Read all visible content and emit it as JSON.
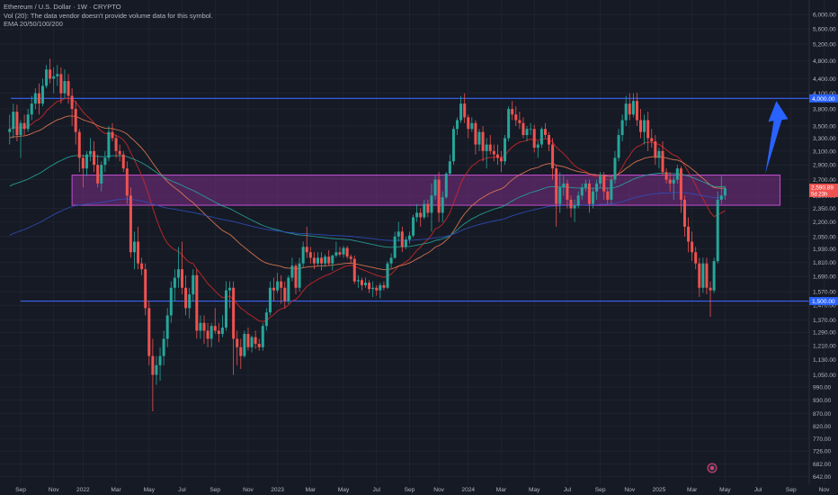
{
  "legend": {
    "title": "Ethereum / U.S. Dollar · 1W · CRYPTO",
    "volume_note": "Vol (20): The data vendor doesn't provide volume data for this symbol.",
    "ema_note": "EMA 20/50/100/200"
  },
  "colors": {
    "background": "#161a25",
    "grid": "#242836",
    "up": "#26a69a",
    "down": "#ef5350",
    "hline": "#3a63f5",
    "zone_fill": "#7b2f86",
    "zone_border": "#c050d0",
    "arrow": "#2962ff",
    "ema20": "#c62828",
    "ema50": "#e57b52",
    "ema100": "#26a69a",
    "ema200": "#2f4fbf"
  },
  "chart_data": {
    "type": "candlestick",
    "timeframe": "1W",
    "symbol": "Ethereum / U.S. Dollar",
    "scale": "log",
    "ylim": [
      600,
      6300
    ],
    "y_ticks": [
      "6,000.00",
      "5,600.00",
      "5,200.00",
      "4,800.00",
      "4,400.00",
      "4,100.00",
      "3,800.00",
      "3,500.00",
      "3,300.00",
      "3,100.00",
      "2,900.00",
      "2,700.00",
      "2,500.00",
      "2,350.00",
      "2,200.00",
      "2,050.00",
      "1,930.00",
      "1,810.00",
      "1,690.00",
      "1,570.00",
      "1,470.00",
      "1,370.00",
      "1,290.00",
      "1,210.00",
      "1,130.00",
      "1,050.00",
      "990.00",
      "930.00",
      "870.00",
      "820.00",
      "770.00",
      "726.00",
      "682.00",
      "642.00"
    ],
    "x_labels": [
      "Sep",
      "Nov",
      "2022",
      "Mar",
      "May",
      "Jul",
      "Sep",
      "Nov",
      "2023",
      "Mar",
      "May",
      "Jul",
      "Sep",
      "Nov",
      "2024",
      "Mar",
      "May",
      "Jul",
      "Sep",
      "Nov",
      "2025",
      "Mar",
      "May",
      "Jul",
      "Sep",
      "Nov"
    ],
    "x_label_weeks": [
      0,
      9,
      17,
      26,
      35,
      44,
      53,
      62,
      70,
      79,
      88,
      97,
      106,
      114,
      122,
      131,
      140,
      149,
      158,
      166,
      174,
      183,
      192,
      201,
      210,
      219
    ],
    "current_price_label": "2,590.89",
    "current_countdown_label": "5d 23h",
    "levels": [
      {
        "name": "resistance",
        "value": 4000,
        "label": "4,000.00"
      },
      {
        "name": "support",
        "value": 1500,
        "label": "1,500.00"
      }
    ],
    "zone": {
      "low": 2385,
      "high": 2760,
      "start_week": 14,
      "end_week": 207
    },
    "arrow": {
      "from_week": 203,
      "from_price": 2780,
      "to_week": 206,
      "to_price": 3950
    },
    "ohlc_weekly": [
      [
        3400,
        3700,
        3200,
        3450
      ],
      [
        3450,
        3900,
        3300,
        3750
      ],
      [
        3750,
        3880,
        3250,
        3350
      ],
      [
        3350,
        3600,
        3000,
        3550
      ],
      [
        3550,
        3700,
        3350,
        3450
      ],
      [
        3450,
        3800,
        3400,
        3700
      ],
      [
        3700,
        4050,
        3600,
        3900
      ],
      [
        3900,
        4200,
        3800,
        4100
      ],
      [
        4100,
        4300,
        3700,
        3900
      ],
      [
        3900,
        4400,
        3850,
        4250
      ],
      [
        4250,
        4700,
        4200,
        4600
      ],
      [
        4600,
        4850,
        4300,
        4400
      ],
      [
        4400,
        4650,
        4100,
        4450
      ],
      [
        4450,
        4700,
        4250,
        4500
      ],
      [
        4500,
        4650,
        3900,
        4100
      ],
      [
        4100,
        4600,
        4000,
        4350
      ],
      [
        4350,
        4500,
        3900,
        4050
      ],
      [
        4050,
        4200,
        3500,
        3800
      ],
      [
        3800,
        3950,
        3200,
        3400
      ],
      [
        3400,
        3450,
        2800,
        3000
      ],
      [
        3000,
        3050,
        2600,
        2850
      ],
      [
        2850,
        3100,
        2750,
        3050
      ],
      [
        3050,
        3300,
        2950,
        3100
      ],
      [
        3100,
        3250,
        2800,
        2900
      ],
      [
        2900,
        3050,
        2600,
        2650
      ],
      [
        2650,
        2950,
        2550,
        2900
      ],
      [
        2900,
        3100,
        2800,
        3000
      ],
      [
        3000,
        3500,
        2950,
        3400
      ],
      [
        3400,
        3550,
        3250,
        3300
      ],
      [
        3300,
        3350,
        3000,
        3100
      ],
      [
        3100,
        3200,
        2950,
        3050
      ],
      [
        3050,
        3100,
        2800,
        2850
      ],
      [
        2850,
        2950,
        2400,
        2500
      ],
      [
        2500,
        2600,
        1850,
        1900
      ],
      [
        1900,
        2100,
        1750,
        2000
      ],
      [
        2000,
        2150,
        1750,
        1800
      ],
      [
        1800,
        1850,
        1700,
        1750
      ],
      [
        1750,
        1800,
        1400,
        1450
      ],
      [
        1450,
        1500,
        1100,
        1150
      ],
      [
        1150,
        1250,
        880,
        1050
      ],
      [
        1050,
        1150,
        1000,
        1100
      ],
      [
        1100,
        1200,
        1020,
        1150
      ],
      [
        1150,
        1300,
        1100,
        1250
      ],
      [
        1250,
        1450,
        1200,
        1400
      ],
      [
        1400,
        1650,
        1350,
        1600
      ],
      [
        1600,
        1750,
        1500,
        1680
      ],
      [
        1680,
        1950,
        1600,
        1750
      ],
      [
        1750,
        2000,
        1550,
        1600
      ],
      [
        1600,
        1700,
        1400,
        1450
      ],
      [
        1450,
        1600,
        1380,
        1550
      ],
      [
        1550,
        1750,
        1500,
        1700
      ],
      [
        1700,
        1750,
        1250,
        1300
      ],
      [
        1300,
        1400,
        1250,
        1350
      ],
      [
        1350,
        1400,
        1220,
        1300
      ],
      [
        1300,
        1350,
        1200,
        1250
      ],
      [
        1250,
        1350,
        1200,
        1330
      ],
      [
        1330,
        1450,
        1280,
        1300
      ],
      [
        1300,
        1350,
        1230,
        1280
      ],
      [
        1280,
        1400,
        1260,
        1320
      ],
      [
        1320,
        1650,
        1300,
        1580
      ],
      [
        1580,
        1650,
        1450,
        1600
      ],
      [
        1600,
        1650,
        1050,
        1250
      ],
      [
        1250,
        1300,
        1100,
        1200
      ],
      [
        1200,
        1250,
        1080,
        1150
      ],
      [
        1150,
        1300,
        1140,
        1280
      ],
      [
        1280,
        1320,
        1180,
        1200
      ],
      [
        1200,
        1270,
        1170,
        1260
      ],
      [
        1260,
        1300,
        1190,
        1220
      ],
      [
        1220,
        1250,
        1180,
        1200
      ],
      [
        1200,
        1350,
        1180,
        1330
      ],
      [
        1330,
        1450,
        1300,
        1420
      ],
      [
        1420,
        1650,
        1400,
        1600
      ],
      [
        1600,
        1680,
        1500,
        1580
      ],
      [
        1580,
        1720,
        1560,
        1650
      ],
      [
        1650,
        1700,
        1480,
        1600
      ],
      [
        1600,
        1650,
        1450,
        1500
      ],
      [
        1500,
        1700,
        1480,
        1680
      ],
      [
        1680,
        1850,
        1650,
        1780
      ],
      [
        1780,
        1800,
        1550,
        1600
      ],
      [
        1600,
        1850,
        1570,
        1800
      ],
      [
        1800,
        2000,
        1760,
        1950
      ],
      [
        1950,
        2150,
        1850,
        1900
      ],
      [
        1900,
        1950,
        1800,
        1850
      ],
      [
        1850,
        1900,
        1750,
        1800
      ],
      [
        1800,
        1900,
        1780,
        1850
      ],
      [
        1850,
        1900,
        1740,
        1800
      ],
      [
        1800,
        1880,
        1770,
        1860
      ],
      [
        1860,
        1920,
        1780,
        1800
      ],
      [
        1800,
        1880,
        1740,
        1870
      ],
      [
        1870,
        2000,
        1850,
        1900
      ],
      [
        1900,
        1950,
        1860,
        1880
      ],
      [
        1880,
        1960,
        1850,
        1940
      ],
      [
        1940,
        1960,
        1840,
        1860
      ],
      [
        1860,
        1880,
        1800,
        1840
      ],
      [
        1840,
        1870,
        1630,
        1650
      ],
      [
        1650,
        1700,
        1600,
        1660
      ],
      [
        1660,
        1680,
        1580,
        1620
      ],
      [
        1620,
        1680,
        1600,
        1640
      ],
      [
        1640,
        1660,
        1560,
        1590
      ],
      [
        1590,
        1650,
        1530,
        1600
      ],
      [
        1600,
        1620,
        1540,
        1580
      ],
      [
        1580,
        1640,
        1520,
        1620
      ],
      [
        1620,
        1650,
        1580,
        1600
      ],
      [
        1600,
        1820,
        1590,
        1800
      ],
      [
        1800,
        1890,
        1760,
        1850
      ],
      [
        1850,
        2100,
        1840,
        2050
      ],
      [
        2050,
        2200,
        2000,
        2100
      ],
      [
        2100,
        2150,
        1900,
        1950
      ],
      [
        1950,
        2050,
        1930,
        2020
      ],
      [
        2020,
        2100,
        1980,
        2060
      ],
      [
        2060,
        2280,
        2040,
        2250
      ],
      [
        2250,
        2400,
        2200,
        2300
      ],
      [
        2300,
        2350,
        2150,
        2250
      ],
      [
        2250,
        2450,
        2230,
        2400
      ],
      [
        2400,
        2450,
        2250,
        2300
      ],
      [
        2300,
        2650,
        2100,
        2500
      ],
      [
        2500,
        2750,
        2450,
        2700
      ],
      [
        2700,
        2800,
        2200,
        2300
      ],
      [
        2300,
        2550,
        2200,
        2480
      ],
      [
        2480,
        2800,
        2460,
        2780
      ],
      [
        2780,
        3050,
        2750,
        2950
      ],
      [
        2950,
        3500,
        2900,
        3450
      ],
      [
        3450,
        3650,
        3350,
        3600
      ],
      [
        3600,
        4050,
        3550,
        3900
      ],
      [
        3900,
        4100,
        3550,
        3650
      ],
      [
        3650,
        3700,
        3300,
        3450
      ],
      [
        3450,
        3650,
        3400,
        3550
      ],
      [
        3550,
        3600,
        3050,
        3200
      ],
      [
        3200,
        3450,
        3100,
        3400
      ],
      [
        3400,
        3500,
        2950,
        3100
      ],
      [
        3100,
        3300,
        2850,
        3200
      ],
      [
        3200,
        3350,
        3050,
        3100
      ],
      [
        3100,
        3200,
        2950,
        3050
      ],
      [
        3050,
        3200,
        2900,
        3000
      ],
      [
        3000,
        3100,
        2800,
        2950
      ],
      [
        2950,
        3350,
        2900,
        3300
      ],
      [
        3300,
        3850,
        3250,
        3800
      ],
      [
        3800,
        3950,
        3600,
        3700
      ],
      [
        3700,
        3850,
        3500,
        3600
      ],
      [
        3600,
        3750,
        3450,
        3550
      ],
      [
        3550,
        3650,
        3300,
        3350
      ],
      [
        3350,
        3500,
        3250,
        3450
      ],
      [
        3450,
        3550,
        3350,
        3450
      ],
      [
        3450,
        3520,
        3080,
        3150
      ],
      [
        3150,
        3250,
        3000,
        3200
      ],
      [
        3200,
        3480,
        3150,
        3450
      ],
      [
        3450,
        3550,
        3300,
        3350
      ],
      [
        3350,
        3400,
        3100,
        3200
      ],
      [
        3200,
        3300,
        2700,
        2850
      ],
      [
        2850,
        2900,
        2150,
        2400
      ],
      [
        2400,
        2800,
        2300,
        2600
      ],
      [
        2600,
        2750,
        2500,
        2650
      ],
      [
        2650,
        2700,
        2350,
        2450
      ],
      [
        2450,
        2500,
        2250,
        2350
      ],
      [
        2350,
        2450,
        2200,
        2380
      ],
      [
        2380,
        2550,
        2350,
        2500
      ],
      [
        2500,
        2650,
        2450,
        2600
      ],
      [
        2600,
        2700,
        2550,
        2650
      ],
      [
        2650,
        2700,
        2300,
        2400
      ],
      [
        2400,
        2600,
        2350,
        2550
      ],
      [
        2550,
        2700,
        2450,
        2650
      ],
      [
        2650,
        2800,
        2600,
        2750
      ],
      [
        2750,
        2800,
        2450,
        2550
      ],
      [
        2550,
        2600,
        2400,
        2450
      ],
      [
        2450,
        2750,
        2400,
        2700
      ],
      [
        2700,
        3100,
        2650,
        3000
      ],
      [
        3000,
        3450,
        2950,
        3350
      ],
      [
        3350,
        3700,
        3250,
        3600
      ],
      [
        3600,
        4050,
        3500,
        3900
      ],
      [
        3900,
        4100,
        3600,
        3700
      ],
      [
        3700,
        4100,
        3650,
        3950
      ],
      [
        3950,
        4110,
        3500,
        3600
      ],
      [
        3600,
        3800,
        3300,
        3400
      ],
      [
        3400,
        3700,
        3200,
        3600
      ],
      [
        3600,
        3750,
        3100,
        3300
      ],
      [
        3300,
        3450,
        3150,
        3250
      ],
      [
        3250,
        3350,
        2900,
        3000
      ],
      [
        3000,
        3150,
        2850,
        3100
      ],
      [
        3100,
        3250,
        2750,
        2800
      ],
      [
        2800,
        2850,
        2650,
        2700
      ],
      [
        2700,
        2800,
        2550,
        2650
      ],
      [
        2650,
        2750,
        2450,
        2700
      ],
      [
        2700,
        2900,
        2650,
        2850
      ],
      [
        2850,
        2880,
        2300,
        2450
      ],
      [
        2450,
        2500,
        2050,
        2150
      ],
      [
        2150,
        2250,
        1900,
        2000
      ],
      [
        2000,
        2100,
        1820,
        1900
      ],
      [
        1900,
        1950,
        1750,
        1800
      ],
      [
        1800,
        1850,
        1530,
        1600
      ],
      [
        1600,
        1850,
        1560,
        1800
      ],
      [
        1800,
        1850,
        1550,
        1600
      ],
      [
        1600,
        1650,
        1390,
        1580
      ],
      [
        1580,
        1850,
        1560,
        1820
      ],
      [
        1820,
        2550,
        1800,
        2450
      ],
      [
        2450,
        2750,
        2400,
        2500
      ],
      [
        2500,
        2620,
        2450,
        2590
      ]
    ],
    "ema_series": [
      {
        "name": "EMA 20",
        "period": 20
      },
      {
        "name": "EMA 50",
        "period": 50
      },
      {
        "name": "EMA 100",
        "period": 100
      },
      {
        "name": "EMA 200",
        "period": 200
      }
    ]
  }
}
